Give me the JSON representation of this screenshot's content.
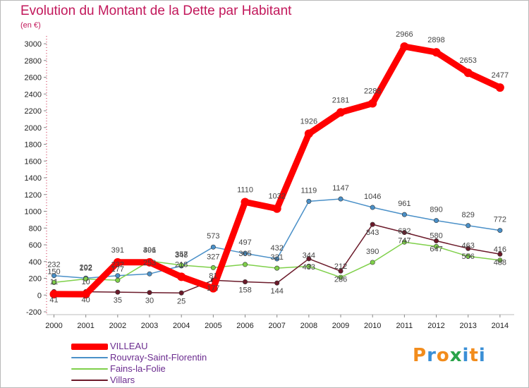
{
  "header": {
    "title": "Evolution du Montant de la Dette par Habitant",
    "unit": "(en €)"
  },
  "brand": {
    "letters": [
      "P",
      "r",
      "o",
      "x",
      "i",
      "t",
      "i"
    ],
    "colors": [
      "#f28c1c",
      "#3a8fd6",
      "#f28c1c",
      "#2aa34a",
      "#3a8fd6",
      "#f28c1c",
      "#3a8fd6"
    ]
  },
  "chart_data": {
    "type": "line",
    "title": "Evolution du Montant de la Dette par Habitant",
    "ylabel": "(en €)",
    "xlabel": "",
    "x": [
      "2000",
      "2001",
      "2002",
      "2003",
      "2004",
      "2005",
      "2006",
      "2007",
      "2008",
      "2009",
      "2010",
      "2011",
      "2012",
      "2013",
      "2014"
    ],
    "ylim": [
      -200,
      3000
    ],
    "yticks": [
      -200,
      0,
      200,
      400,
      600,
      800,
      1000,
      1200,
      1400,
      1600,
      1800,
      2000,
      2200,
      2400,
      2600,
      2800,
      3000
    ],
    "grid": false,
    "legend_position": "bottom-left",
    "series": [
      {
        "name": "VILLEAU",
        "color": "#ff0000",
        "values": [
          11,
          10,
          391,
          391,
          218,
          81,
          1110,
          1032,
          1926,
          2181,
          2288,
          2966,
          2898,
          2653,
          2477
        ]
      },
      {
        "name": "Rouvray-Saint-Florentin",
        "color": "#4a90c8",
        "values": [
          232,
          202,
          232,
          253,
          348,
          573,
          497,
          432,
          1119,
          1147,
          1046,
          961,
          890,
          829,
          772
        ]
      },
      {
        "name": "Fains-la-Folie",
        "color": "#7fd04a",
        "values": [
          150,
          192,
          177,
          406,
          357,
          327,
          365,
          321,
          344,
          212,
          390,
          632,
          580,
          463,
          416
        ]
      },
      {
        "name": "Villars",
        "color": "#6b1a2a",
        "values": [
          41,
          40,
          35,
          30,
          25,
          177,
          158,
          144,
          433,
          286,
          843,
          747,
          647,
          556,
          488
        ]
      }
    ]
  }
}
